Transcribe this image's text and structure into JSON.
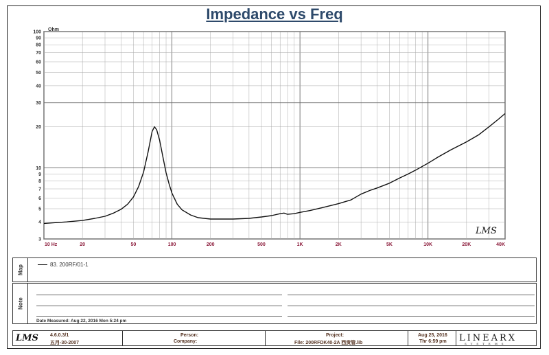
{
  "chart_data": {
    "type": "line",
    "title": "Impedance vs Freq",
    "ylabel": "Ohm",
    "x_scale": "log",
    "y_scale": "log",
    "xlim": [
      10,
      40000
    ],
    "ylim": [
      3,
      100
    ],
    "x_ticks": [
      {
        "v": 10,
        "label": "10  Hz"
      },
      {
        "v": 20,
        "label": "20"
      },
      {
        "v": 50,
        "label": "50"
      },
      {
        "v": 100,
        "label": "100"
      },
      {
        "v": 200,
        "label": "200"
      },
      {
        "v": 500,
        "label": "500"
      },
      {
        "v": 1000,
        "label": "1K"
      },
      {
        "v": 2000,
        "label": "2K"
      },
      {
        "v": 5000,
        "label": "5K"
      },
      {
        "v": 10000,
        "label": "10K"
      },
      {
        "v": 20000,
        "label": "20K"
      },
      {
        "v": 40000,
        "label": "40K"
      }
    ],
    "y_ticks": [
      {
        "v": 3,
        "label": "3"
      },
      {
        "v": 4,
        "label": "4"
      },
      {
        "v": 5,
        "label": "5"
      },
      {
        "v": 6,
        "label": "6"
      },
      {
        "v": 7,
        "label": "7"
      },
      {
        "v": 8,
        "label": "8"
      },
      {
        "v": 9,
        "label": "9"
      },
      {
        "v": 10,
        "label": "10"
      },
      {
        "v": 20,
        "label": "20"
      },
      {
        "v": 30,
        "label": "30"
      },
      {
        "v": 40,
        "label": "40"
      },
      {
        "v": 50,
        "label": "50"
      },
      {
        "v": 60,
        "label": "60"
      },
      {
        "v": 70,
        "label": "70"
      },
      {
        "v": 80,
        "label": "80"
      },
      {
        "v": 90,
        "label": "90"
      },
      {
        "v": 100,
        "label": "100"
      }
    ],
    "grid": true,
    "watermark": "LMS",
    "series": [
      {
        "name": "83. 200RF/01-1",
        "color": "#111111",
        "points": [
          [
            10,
            3.9
          ],
          [
            15,
            4.0
          ],
          [
            20,
            4.1
          ],
          [
            25,
            4.25
          ],
          [
            30,
            4.4
          ],
          [
            35,
            4.65
          ],
          [
            40,
            4.95
          ],
          [
            45,
            5.4
          ],
          [
            50,
            6.1
          ],
          [
            55,
            7.3
          ],
          [
            60,
            9.3
          ],
          [
            65,
            13
          ],
          [
            70,
            18.5
          ],
          [
            73,
            20
          ],
          [
            76,
            19
          ],
          [
            80,
            16
          ],
          [
            85,
            12
          ],
          [
            90,
            9.2
          ],
          [
            95,
            7.6
          ],
          [
            100,
            6.5
          ],
          [
            110,
            5.4
          ],
          [
            120,
            4.9
          ],
          [
            140,
            4.5
          ],
          [
            160,
            4.3
          ],
          [
            200,
            4.2
          ],
          [
            300,
            4.2
          ],
          [
            400,
            4.25
          ],
          [
            500,
            4.35
          ],
          [
            600,
            4.45
          ],
          [
            700,
            4.6
          ],
          [
            750,
            4.65
          ],
          [
            800,
            4.55
          ],
          [
            900,
            4.6
          ],
          [
            1000,
            4.7
          ],
          [
            1200,
            4.85
          ],
          [
            1500,
            5.1
          ],
          [
            2000,
            5.45
          ],
          [
            2500,
            5.8
          ],
          [
            3000,
            6.4
          ],
          [
            3500,
            6.8
          ],
          [
            4000,
            7.1
          ],
          [
            5000,
            7.7
          ],
          [
            6000,
            8.4
          ],
          [
            7000,
            9.0
          ],
          [
            8000,
            9.6
          ],
          [
            10000,
            10.8
          ],
          [
            12000,
            12.0
          ],
          [
            15000,
            13.5
          ],
          [
            20000,
            15.5
          ],
          [
            25000,
            17.5
          ],
          [
            30000,
            20
          ],
          [
            35000,
            22.5
          ],
          [
            40000,
            25
          ]
        ]
      }
    ]
  },
  "panels": {
    "legend_label": "Map",
    "notes_label": "Note",
    "legend_entry": "83. 200RF/01-1",
    "date_measured": "Date Measured: Aug 22, 2016  Mon  5:24 pm"
  },
  "footer": {
    "logo": "LMS",
    "version": "4.6.0.3/1",
    "version_date": "五月-30-2007",
    "person_label": "Person:",
    "company_label": "Company:",
    "project_label": "Project:",
    "file_label": "File: 200RFDK40-2A 西贡管.lib",
    "date": "Aug 25, 2016",
    "time": "Thr  6:59 pm",
    "brand": "LINEARX",
    "brand_sub": "SYSTEMS"
  }
}
